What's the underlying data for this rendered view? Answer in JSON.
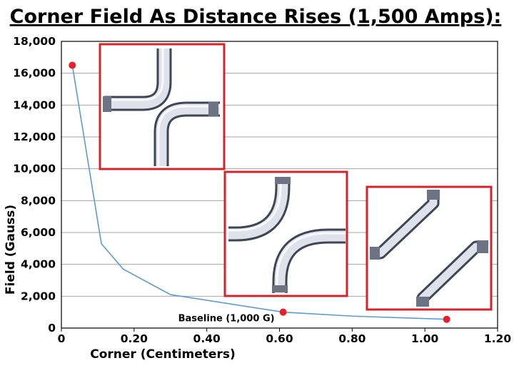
{
  "chart_data": {
    "type": "line",
    "title": "Corner Field As Distance Rises (1,500 Amps):",
    "xlabel": "Corner (Centimeters)",
    "ylabel": "Field (Gauss)",
    "xlim": [
      0,
      1.2
    ],
    "ylim": [
      0,
      18000
    ],
    "x_ticks": [
      "0",
      "0.20",
      "0.40",
      "0.60",
      "0.80",
      "1.00",
      "1.20"
    ],
    "y_ticks": [
      "0",
      "2,000",
      "4,000",
      "6,000",
      "8,000",
      "10,000",
      "12,000",
      "14,000",
      "16,000",
      "18,000"
    ],
    "grid": "horizontal",
    "series": [
      {
        "color": "#5b9bd5",
        "x": [
          0.03,
          0.11,
          0.17,
          0.3,
          0.61,
          0.8,
          1.06
        ],
        "y": [
          16500,
          5300,
          3700,
          2100,
          1000,
          750,
          550
        ]
      }
    ],
    "highlight_points": [
      {
        "x": 0.03,
        "y": 16500
      },
      {
        "x": 0.61,
        "y": 1000
      },
      {
        "x": 1.06,
        "y": 550
      }
    ],
    "highlight_color": "#e8202a",
    "annotations": [
      {
        "text": "Baseline (1,000 G)",
        "x": 0.61,
        "y": 1000
      }
    ]
  },
  "insets": [
    {
      "icon": "crossing-curved-pipes-near-icon",
      "border_color": "#d3242b"
    },
    {
      "icon": "crossing-curved-pipes-mid-icon",
      "border_color": "#d3242b"
    },
    {
      "icon": "crossing-angled-pipes-far-icon",
      "border_color": "#d3242b"
    }
  ]
}
